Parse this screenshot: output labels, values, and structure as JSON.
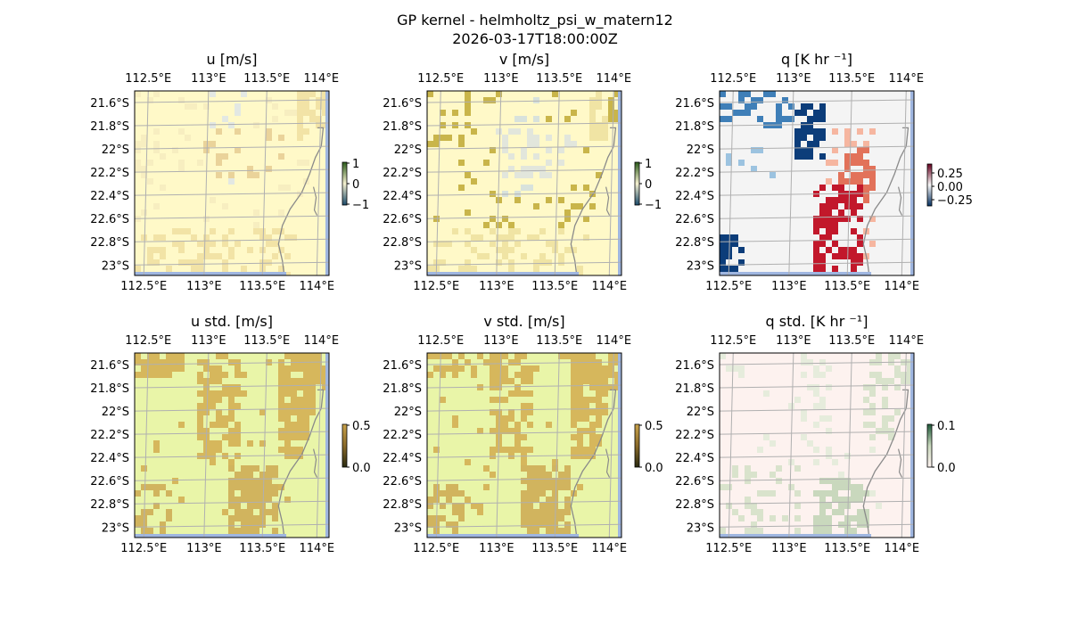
{
  "figure": {
    "title": "GP kernel - helmholtz_psi_w_matern12",
    "subtitle": "2026-03-17T18:00:00Z"
  },
  "axes_ticks": {
    "lon_labels": [
      "112.5°E",
      "113°E",
      "113.5°E",
      "114°E"
    ],
    "lat_labels": [
      "21.6°S",
      "21.8°S",
      "22°S",
      "22.2°S",
      "22.4°S",
      "22.6°S",
      "22.8°S",
      "23°S"
    ]
  },
  "chart_data": [
    {
      "type": "heatmap",
      "title": "u [m/s]",
      "xlabel": "",
      "ylabel": "",
      "x_ticks": [
        "112.5°E",
        "113°E",
        "113.5°E",
        "114°E"
      ],
      "y_ticks": [
        "21.6°S",
        "21.8°S",
        "22°S",
        "22.2°S",
        "22.4°S",
        "22.6°S",
        "22.8°S",
        "23°S"
      ],
      "colormap": "BrBG",
      "vmin": -1,
      "vmax": 1,
      "colorbar_ticks": [
        "1",
        "0",
        "−1"
      ],
      "field_color": "#fff9c8",
      "cell_colors": [
        "#f2e3a6",
        "#ead39a",
        "#e3e8e3",
        "#f7eec0"
      ],
      "grid": true,
      "coastline": true
    },
    {
      "type": "heatmap",
      "title": "v [m/s]",
      "xlabel": "",
      "ylabel": "",
      "x_ticks": [
        "112.5°E",
        "113°E",
        "113.5°E",
        "114°E"
      ],
      "y_ticks": [
        "21.6°S",
        "21.8°S",
        "22°S",
        "22.2°S",
        "22.4°S",
        "22.6°S",
        "22.8°S",
        "23°S"
      ],
      "colormap": "BrBG",
      "vmin": -1,
      "vmax": 1,
      "colorbar_ticks": [
        "1",
        "0",
        "−1"
      ],
      "field_color": "#fff9c8",
      "cell_colors": [
        "#f0e4a4",
        "#e2e6dc",
        "#d8e2dc",
        "#c9b54a"
      ],
      "grid": true,
      "coastline": true
    },
    {
      "type": "heatmap",
      "title": "q [K hr ⁻¹]",
      "xlabel": "",
      "ylabel": "",
      "x_ticks": [
        "112.5°E",
        "113°E",
        "113.5°E",
        "114°E"
      ],
      "y_ticks": [
        "21.6°S",
        "21.8°S",
        "22°S",
        "22.2°S",
        "22.4°S",
        "22.6°S",
        "22.8°S",
        "23°S"
      ],
      "colormap": "RdBu_r",
      "vmin": -0.25,
      "vmax": 0.25,
      "colorbar_ticks": [
        "0.25",
        "0.00",
        "−0.25"
      ],
      "field_color": "#f4f4f4",
      "cell_colors": [
        "#0c3d7a",
        "#3f7fb8",
        "#9cc3e0",
        "#c2182b",
        "#e2725a",
        "#f6b6a0"
      ],
      "grid": true,
      "coastline": true
    },
    {
      "type": "heatmap",
      "title": "u std. [m/s]",
      "xlabel": "",
      "ylabel": "",
      "x_ticks": [
        "112.5°E",
        "113°E",
        "113.5°E",
        "114°E"
      ],
      "y_ticks": [
        "21.6°S",
        "21.8°S",
        "22°S",
        "22.2°S",
        "22.4°S",
        "22.6°S",
        "22.8°S",
        "23°S"
      ],
      "colormap": "cividis-like",
      "vmin": 0.0,
      "vmax": 0.5,
      "colorbar_ticks": [
        "0.5",
        "0.0"
      ],
      "field_color": "#e9f5a8",
      "cell_colors": [
        "#d6b75c",
        "#d1b45e"
      ],
      "grid": true,
      "coastline": true
    },
    {
      "type": "heatmap",
      "title": "v std. [m/s]",
      "xlabel": "",
      "ylabel": "",
      "x_ticks": [
        "112.5°E",
        "113°E",
        "113.5°E",
        "114°E"
      ],
      "y_ticks": [
        "21.6°S",
        "21.8°S",
        "22°S",
        "22.2°S",
        "22.4°S",
        "22.6°S",
        "22.8°S",
        "23°S"
      ],
      "colormap": "cividis-like",
      "vmin": 0.0,
      "vmax": 0.5,
      "colorbar_ticks": [
        "0.5",
        "0.0"
      ],
      "field_color": "#e9f5a8",
      "cell_colors": [
        "#d6b75c",
        "#d1b45e"
      ],
      "grid": true,
      "coastline": true
    },
    {
      "type": "heatmap",
      "title": "q std. [K hr ⁻¹]",
      "xlabel": "",
      "ylabel": "",
      "x_ticks": [
        "112.5°E",
        "113°E",
        "113.5°E",
        "114°E"
      ],
      "y_ticks": [
        "21.6°S",
        "21.8°S",
        "22°S",
        "22.2°S",
        "22.4°S",
        "22.6°S",
        "22.8°S",
        "23°S"
      ],
      "colormap": "green-pink",
      "vmin": 0.0,
      "vmax": 0.1,
      "colorbar_ticks": [
        "0.1",
        "0.0"
      ],
      "field_color": "#fdf2ef",
      "cell_colors": [
        "#d9e3cc",
        "#c9d8bd",
        "#e6ecdc"
      ],
      "grid": true,
      "coastline": true
    }
  ],
  "colors": {
    "coastline": "#8a8a8a",
    "grid": "#b0b0b0",
    "ocean_edge": "#9fb6e0"
  }
}
